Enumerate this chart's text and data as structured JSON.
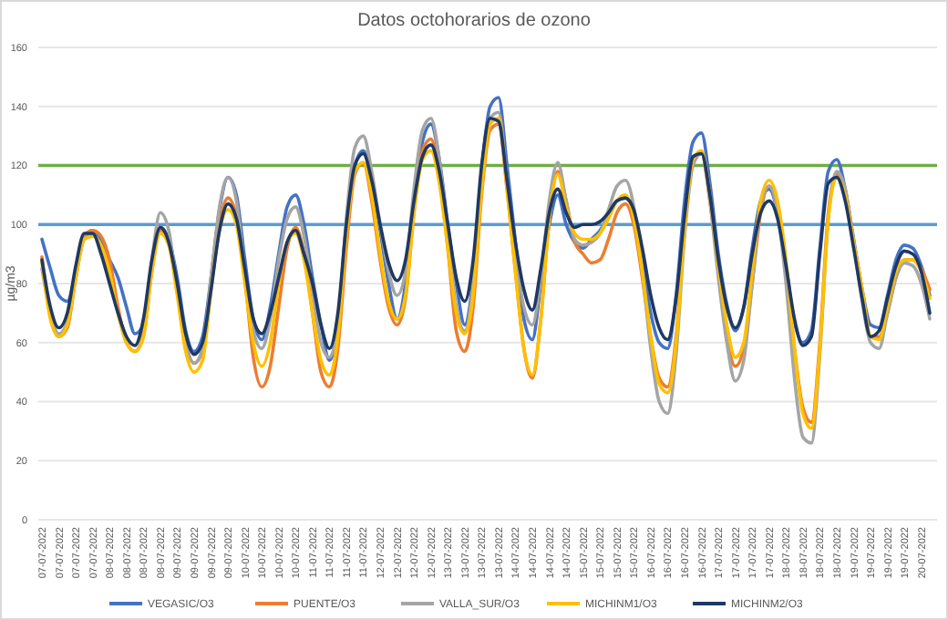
{
  "chart_data": {
    "type": "line",
    "title": "Datos octohorarios de ozono",
    "ylabel": "µg/m3",
    "categories": [
      "07-07-2022",
      null,
      "07-07-2022",
      null,
      "07-07-2022",
      null,
      "07-07-2022",
      null,
      "08-07-2022",
      null,
      "08-07-2022",
      null,
      "08-07-2022",
      null,
      "08-07-2022",
      null,
      "09-07-2022",
      null,
      "09-07-2022",
      null,
      "09-07-2022",
      null,
      "09-07-2022",
      null,
      "10-07-2022",
      null,
      "10-07-2022",
      null,
      "10-07-2022",
      null,
      "10-07-2022",
      null,
      "11-07-2022",
      null,
      "11-07-2022",
      null,
      "11-07-2022",
      null,
      "11-07-2022",
      null,
      "12-07-2022",
      null,
      "12-07-2022",
      null,
      "12-07-2022",
      null,
      "12-07-2022",
      null,
      "13-07-2022",
      null,
      "13-07-2022",
      null,
      "13-07-2022",
      null,
      "13-07-2022",
      null,
      "14-07-2022",
      null,
      "14-07-2022",
      null,
      "14-07-2022",
      null,
      "14-07-2022",
      null,
      "15-07-2022",
      null,
      "15-07-2022",
      null,
      "15-07-2022",
      null,
      "15-07-2022",
      null,
      "16-07-2022",
      null,
      "16-07-2022",
      null,
      "16-07-2022",
      null,
      "16-07-2022",
      null,
      "17-07-2022",
      null,
      "17-07-2022",
      null,
      "17-07-2022",
      null,
      "17-07-2022",
      null,
      "18-07-2022",
      null,
      "18-07-2022",
      null,
      "18-07-2022",
      null,
      "18-07-2022",
      null,
      "19-07-2022",
      null,
      "19-07-2022",
      null,
      "19-07-2022",
      null,
      "19-07-2022",
      null,
      "20-07-2022",
      null
    ],
    "series": [
      {
        "name": "VEGASIC/O3",
        "color": "#4472c4",
        "values": [
          95,
          85,
          76,
          74,
          84,
          96,
          98,
          94,
          88,
          82,
          72,
          63,
          66,
          86,
          99,
          95,
          82,
          64,
          57,
          62,
          82,
          105,
          116,
          110,
          88,
          68,
          61,
          72,
          90,
          106,
          110,
          100,
          82,
          66,
          54,
          66,
          100,
          120,
          125,
          115,
          98,
          80,
          68,
          80,
          108,
          128,
          134,
          122,
          100,
          80,
          66,
          82,
          118,
          140,
          143,
          120,
          94,
          68,
          61,
          80,
          100,
          110,
          100,
          94,
          92,
          95,
          98,
          103,
          108,
          109,
          104,
          88,
          70,
          60,
          58,
          76,
          108,
          128,
          131,
          114,
          90,
          73,
          64,
          72,
          92,
          108,
          112,
          104,
          86,
          67,
          60,
          64,
          92,
          118,
          122,
          112,
          95,
          78,
          66,
          65,
          76,
          88,
          93,
          92,
          86,
          76
        ]
      },
      {
        "name": "PUENTE/O3",
        "color": "#ed7d31",
        "values": [
          89,
          70,
          62,
          65,
          82,
          96,
          98,
          96,
          88,
          72,
          60,
          57,
          62,
          84,
          98,
          94,
          78,
          60,
          53,
          57,
          78,
          100,
          109,
          103,
          82,
          55,
          45,
          52,
          72,
          92,
          99,
          90,
          70,
          50,
          45,
          58,
          92,
          117,
          121,
          108,
          88,
          72,
          66,
          75,
          104,
          125,
          129,
          116,
          92,
          64,
          57,
          72,
          110,
          132,
          134,
          112,
          84,
          58,
          48,
          68,
          102,
          118,
          108,
          94,
          90,
          87,
          88,
          95,
          104,
          107,
          100,
          82,
          62,
          48,
          45,
          62,
          98,
          122,
          124,
          108,
          84,
          62,
          52,
          58,
          80,
          104,
          113,
          106,
          86,
          58,
          38,
          33,
          60,
          104,
          117,
          110,
          94,
          78,
          62,
          62,
          70,
          82,
          88,
          88,
          85,
          78
        ]
      },
      {
        "name": "VALLA_SUR/O3",
        "color": "#a5a5a5",
        "values": [
          85,
          70,
          63,
          67,
          82,
          95,
          97,
          92,
          82,
          70,
          60,
          57,
          64,
          88,
          104,
          98,
          78,
          60,
          53,
          58,
          82,
          106,
          116,
          108,
          84,
          64,
          58,
          68,
          88,
          102,
          106,
          96,
          78,
          60,
          55,
          66,
          102,
          126,
          130,
          118,
          100,
          84,
          76,
          84,
          112,
          132,
          136,
          122,
          96,
          72,
          64,
          80,
          118,
          136,
          138,
          115,
          90,
          72,
          66,
          82,
          108,
          121,
          108,
          95,
          93,
          94,
          97,
          105,
          113,
          115,
          106,
          84,
          58,
          40,
          36,
          56,
          96,
          120,
          124,
          108,
          82,
          60,
          47,
          54,
          80,
          106,
          113,
          104,
          80,
          48,
          28,
          26,
          56,
          102,
          118,
          112,
          94,
          74,
          60,
          58,
          70,
          82,
          87,
          86,
          80,
          68
        ]
      },
      {
        "name": "MICHINM1/O3",
        "color": "#ffc000",
        "values": [
          87,
          68,
          62,
          66,
          82,
          95,
          96,
          93,
          84,
          70,
          60,
          57,
          62,
          84,
          97,
          93,
          76,
          57,
          50,
          54,
          78,
          98,
          105,
          100,
          80,
          60,
          52,
          60,
          80,
          94,
          97,
          88,
          70,
          54,
          49,
          62,
          96,
          118,
          121,
          110,
          90,
          74,
          68,
          76,
          104,
          122,
          125,
          114,
          92,
          70,
          63,
          76,
          112,
          134,
          136,
          112,
          84,
          58,
          49,
          68,
          102,
          117,
          106,
          97,
          95,
          95,
          97,
          102,
          108,
          110,
          102,
          84,
          62,
          46,
          43,
          60,
          98,
          122,
          125,
          110,
          86,
          66,
          55,
          60,
          84,
          108,
          115,
          108,
          88,
          58,
          36,
          31,
          58,
          102,
          116,
          110,
          94,
          78,
          62,
          61,
          72,
          84,
          88,
          88,
          84,
          75
        ]
      },
      {
        "name": "MICHINM2/O3",
        "color": "#1f3864",
        "values": [
          88,
          72,
          65,
          70,
          86,
          97,
          97,
          90,
          80,
          70,
          62,
          59,
          68,
          88,
          99,
          94,
          80,
          63,
          56,
          60,
          78,
          98,
          107,
          102,
          85,
          68,
          63,
          70,
          82,
          94,
          98,
          90,
          80,
          66,
          58,
          70,
          100,
          120,
          124,
          115,
          100,
          87,
          81,
          88,
          108,
          123,
          127,
          118,
          100,
          82,
          74,
          88,
          120,
          136,
          135,
          115,
          94,
          78,
          71,
          85,
          104,
          112,
          104,
          99,
          100,
          100,
          101,
          104,
          108,
          109,
          105,
          92,
          76,
          65,
          61,
          75,
          103,
          123,
          124,
          110,
          88,
          72,
          65,
          72,
          90,
          104,
          108,
          102,
          86,
          68,
          59,
          62,
          90,
          114,
          116,
          108,
          92,
          75,
          62,
          64,
          75,
          86,
          91,
          90,
          84,
          70
        ]
      }
    ],
    "ylim": [
      0,
      160
    ],
    "yticks": [
      0,
      20,
      40,
      60,
      80,
      100,
      120,
      140,
      160
    ],
    "grid": "y",
    "legend": "bottom",
    "ref_lines": [
      {
        "axis": "y",
        "value": 100,
        "color": "#5b9bd5"
      },
      {
        "axis": "y",
        "value": 120,
        "color": "#70ad47"
      }
    ]
  }
}
